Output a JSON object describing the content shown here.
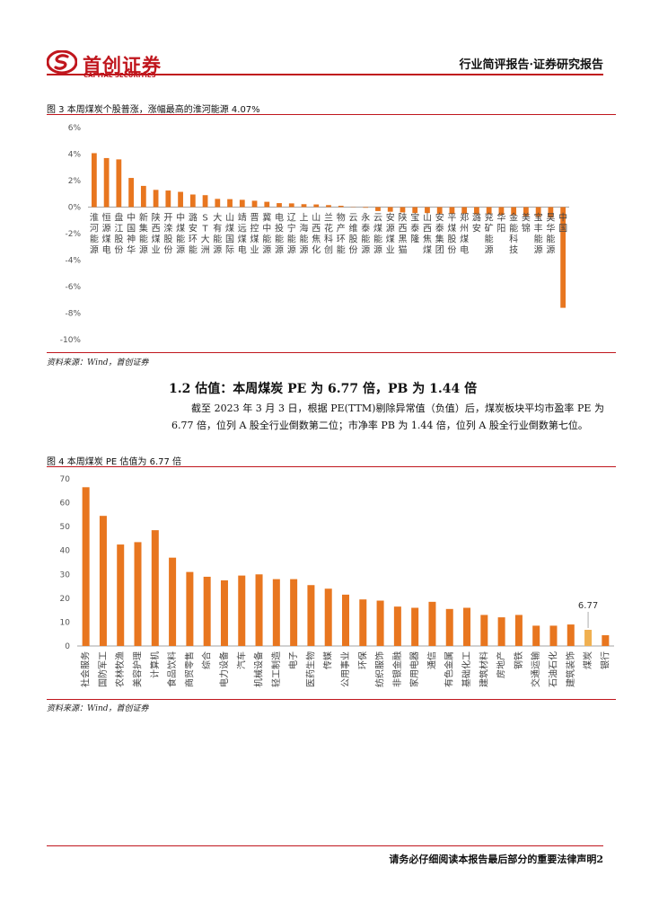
{
  "header": {
    "logo_cn": "首创证券",
    "logo_en": "CAPITAL SECURITIES",
    "report_type": "行业简评报告·证券研究报告"
  },
  "figure3": {
    "title": "图 3 本周煤炭个股普涨，涨幅最高的淮河能源 4.07%",
    "source": "资料来源：Wind，首创证券"
  },
  "section": {
    "heading": "1.2 估值：本周煤炭 PE 为 6.77 倍，PB 为 1.44 倍",
    "paragraph": "截至 2023 年 3 月 3 日，根据 PE(TTM)剔除异常值（负值）后，煤炭板块平均市盈率 PE 为 6.77 倍，位列 A 股全行业倒数第二位；市净率 PB 为 1.44 倍，位列 A 股全行业倒数第七位。"
  },
  "figure4": {
    "title": "图 4 本周煤炭 PE 估值为 6.77 倍",
    "source": "资料来源：Wind，首创证券",
    "highlight_label": "6.77"
  },
  "footer": {
    "text": "请务必仔细阅读本报告最后部分的重要法律声明2"
  },
  "colors": {
    "bar": "#e8761f",
    "highlight": "#f0b050",
    "accent": "#c0161d",
    "axis": "#888888"
  },
  "chart_data": [
    {
      "type": "bar",
      "title": "",
      "ylim": [
        -10,
        6
      ],
      "yticks": [
        "6%",
        "4%",
        "2%",
        "0%",
        "-2%",
        "-4%",
        "-6%",
        "-8%",
        "-10%"
      ],
      "categories": [
        "淮河能源",
        "恒源煤电",
        "盘江股份",
        "中国神华",
        "新集能源",
        "陕西煤业",
        "开滦股份",
        "中煤能源",
        "潞安环能",
        "ST大洲",
        "大有能源",
        "山煤国际",
        "靖远煤电",
        "晋控煤业",
        "冀中能源",
        "电投能源",
        "辽宁能源",
        "上海能源",
        "山西焦化",
        "兰花科创",
        "物产环能",
        "云维股份",
        "永泰能源",
        "云煤能源",
        "安源煤业",
        "陕西黑猫",
        "宝泰隆",
        "山西焦煤",
        "安泰集团",
        "平煤股份",
        "郑州煤电",
        "潞安",
        "兖矿能源",
        "华阳",
        "金能科技",
        "美锦",
        "宝丰能源",
        "昊华能源",
        "中国"
      ],
      "values": [
        4.07,
        3.7,
        3.6,
        2.2,
        1.6,
        1.3,
        1.25,
        1.15,
        0.95,
        0.9,
        0.62,
        0.6,
        0.55,
        0.48,
        0.4,
        0.3,
        0.28,
        0.22,
        0.2,
        0.15,
        0.1,
        0.0,
        -0.05,
        -0.3,
        -0.35,
        -0.4,
        -0.45,
        -0.45,
        -0.5,
        -0.5,
        -0.5,
        -0.55,
        -0.55,
        -0.6,
        -0.6,
        -0.7,
        -0.75,
        -0.8,
        -7.6
      ]
    },
    {
      "type": "bar",
      "title": "",
      "ylim": [
        0,
        70
      ],
      "yticks": [
        "0",
        "10",
        "20",
        "30",
        "40",
        "50",
        "60",
        "70"
      ],
      "categories": [
        "社会服务",
        "国防军工",
        "农林牧渔",
        "美容护理",
        "计算机",
        "食品饮料",
        "商贸零售",
        "综合",
        "电力设备",
        "汽车",
        "机械设备",
        "轻工制造",
        "电子",
        "医药生物",
        "传媒",
        "公用事业",
        "环保",
        "纺织服饰",
        "非银金融",
        "家用电器",
        "通信",
        "有色金属",
        "基础化工",
        "建筑材料",
        "房地产",
        "钢铁",
        "交通运输",
        "石油石化",
        "建筑装饰",
        "煤炭",
        "银行"
      ],
      "values": [
        66.5,
        54.5,
        42.5,
        43.5,
        48.5,
        37,
        31,
        29,
        27.5,
        29.5,
        30,
        28,
        28,
        25.5,
        24,
        21.5,
        19.5,
        19,
        16.5,
        16,
        18.5,
        15.5,
        16,
        13,
        12,
        13,
        8.5,
        8.5,
        9,
        6.77,
        4.5
      ],
      "highlight_index": 29
    }
  ]
}
